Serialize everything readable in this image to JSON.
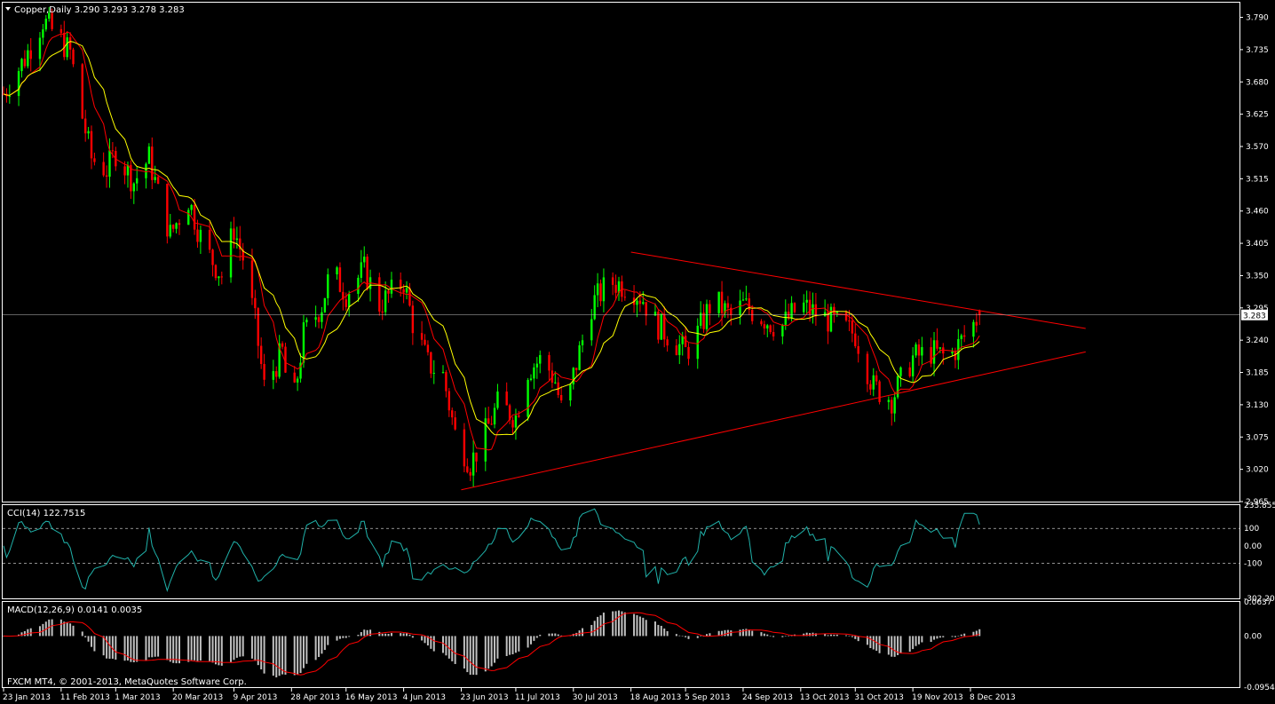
{
  "main": {
    "header": "Copper,Daily  3.290 3.293 3.278 3.283",
    "price_ticks": [
      "3.790",
      "3.735",
      "3.680",
      "3.625",
      "3.570",
      "3.515",
      "3.460",
      "3.405",
      "3.350",
      "3.295",
      "3.240",
      "3.185",
      "3.130",
      "3.075",
      "3.020",
      "2.965"
    ],
    "last_price_label": "3.283"
  },
  "cci": {
    "header": "CCI(14) 122.7515",
    "ticks": [
      "233.8556",
      "100",
      "0.00",
      "-100",
      "-302.208"
    ]
  },
  "macd": {
    "header": "MACD(12,26,9) 0.0141 0.0035",
    "ticks": [
      "0.0637",
      "0.00",
      "-0.0954"
    ],
    "copyright": "FXCM MT4, © 2001-2013, MetaQuotes Software Corp."
  },
  "date_labels": [
    "23 Jan 2013",
    "11 Feb 2013",
    "1 Mar 2013",
    "20 Mar 2013",
    "9 Apr 2013",
    "28 Apr 2013",
    "16 May 2013",
    "4 Jun 2013",
    "23 Jun 2013",
    "11 Jul 2013",
    "30 Jul 2013",
    "18 Aug 2013",
    "5 Sep 2013",
    "24 Sep 2013",
    "13 Oct 2013",
    "31 Oct 2013",
    "19 Nov 2013",
    "8 Dec 2013"
  ],
  "colors": {
    "background": "#000000",
    "frame": "#ffffff",
    "bull": "#00ff00",
    "bear": "#ff0000",
    "ma_fast": "#ffff00",
    "ma_slow": "#ff0000",
    "cci_line": "#20b2aa",
    "macd_hist": "#c0c0c0",
    "macd_signal": "#ff0000",
    "trendline": "#ff0000",
    "price_line": "#c0c0c0"
  },
  "chart_data": {
    "type": "candlestick",
    "symbol": "Copper",
    "timeframe": "Daily",
    "header_ohlc": {
      "open": 3.29,
      "high": 3.293,
      "low": 3.278,
      "close": 3.283
    },
    "y_range": [
      2.965,
      3.815
    ],
    "anchors": [
      [
        "23 Jan 2013",
        3.66
      ],
      [
        "30 Jan 2013",
        3.72
      ],
      [
        "5 Feb 2013",
        3.785
      ],
      [
        "11 Feb 2013",
        3.75
      ],
      [
        "14 Feb 2013",
        3.73
      ],
      [
        "18 Feb 2013",
        3.62
      ],
      [
        "21 Feb 2013",
        3.55
      ],
      [
        "26 Feb 2013",
        3.53
      ],
      [
        "1 Mar 2013",
        3.56
      ],
      [
        "7 Mar 2013",
        3.51
      ],
      [
        "12 Mar 2013",
        3.55
      ],
      [
        "15 Mar 2013",
        3.49
      ],
      [
        "19 Mar 2013",
        3.42
      ],
      [
        "25 Mar 2013",
        3.48
      ],
      [
        "30 Mar 2013",
        3.4
      ],
      [
        "5 Apr 2013",
        3.35
      ],
      [
        "9 Apr 2013",
        3.43
      ],
      [
        "12 Apr 2013",
        3.38
      ],
      [
        "16 Apr 2013",
        3.27
      ],
      [
        "19 Apr 2013",
        3.16
      ],
      [
        "25 Apr 2013",
        3.22
      ],
      [
        "28 Apr 2013",
        3.11
      ],
      [
        "2 May 2013",
        3.25
      ],
      [
        "8 May 2013",
        3.3
      ],
      [
        "11 May 2013",
        3.36
      ],
      [
        "16 May 2013",
        3.32
      ],
      [
        "22 May 2013",
        3.36
      ],
      [
        "27 May 2013",
        3.3
      ],
      [
        "4 Jun 2013",
        3.34
      ],
      [
        "7 Jun 2013",
        3.27
      ],
      [
        "12 Jun 2013",
        3.2
      ],
      [
        "17 Jun 2013",
        3.18
      ],
      [
        "21 Jun 2013",
        3.08
      ],
      [
        "26 Jun 2013",
        3.03
      ],
      [
        "30 Jun 2013",
        3.07
      ],
      [
        "5 Jul 2013",
        3.13
      ],
      [
        "11 Jul 2013",
        3.11
      ],
      [
        "15 Jul 2013",
        3.19
      ],
      [
        "20 Jul 2013",
        3.21
      ],
      [
        "24 Jul 2013",
        3.17
      ],
      [
        "27 Jul 2013",
        3.1
      ],
      [
        "30 Jul 2013",
        3.18
      ],
      [
        "5 Aug 2013",
        3.3
      ],
      [
        "11 Aug 2013",
        3.34
      ],
      [
        "18 Aug 2013",
        3.33
      ],
      [
        "22 Aug 2013",
        3.31
      ],
      [
        "26 Aug 2013",
        3.27
      ],
      [
        "5 Sep 2013",
        3.22
      ],
      [
        "8 Sep 2013",
        3.24
      ],
      [
        "14 Sep 2013",
        3.31
      ],
      [
        "20 Sep 2013",
        3.28
      ],
      [
        "24 Sep 2013",
        3.3
      ],
      [
        "30 Sep 2013",
        3.28
      ],
      [
        "6 Oct 2013",
        3.26
      ],
      [
        "13 Oct 2013",
        3.3
      ],
      [
        "20 Oct 2013",
        3.28
      ],
      [
        "24 Oct 2013",
        3.27
      ],
      [
        "31 Oct 2013",
        3.25
      ],
      [
        "6 Nov 2013",
        3.16
      ],
      [
        "12 Nov 2013",
        3.14
      ],
      [
        "19 Nov 2013",
        3.21
      ],
      [
        "25 Nov 2013",
        3.22
      ],
      [
        "1 Dec 2013",
        3.21
      ],
      [
        "8 Dec 2013",
        3.26
      ],
      [
        "11 Dec 2013",
        3.283
      ]
    ],
    "ma_periods": {
      "fast_yellow": 13,
      "slow_red": 8
    },
    "trendlines": [
      {
        "from": [
          "23 Jun 2013",
          2.985
        ],
        "to": [
          "15 Jan 2014",
          3.22
        ]
      },
      {
        "from": [
          "18 Aug 2013",
          3.39
        ],
        "to": [
          "15 Jan 2014",
          3.26
        ]
      }
    ],
    "horizontal_line": 3.283,
    "cci": {
      "period": 14,
      "last": 122.7515,
      "levels": [
        100,
        -100
      ],
      "range": [
        -302.208,
        233.8556
      ]
    },
    "macd": {
      "fast": 12,
      "slow": 26,
      "signal": 9,
      "main": 0.0141,
      "signal_value": 0.0035,
      "range": [
        -0.0954,
        0.0637
      ]
    }
  }
}
